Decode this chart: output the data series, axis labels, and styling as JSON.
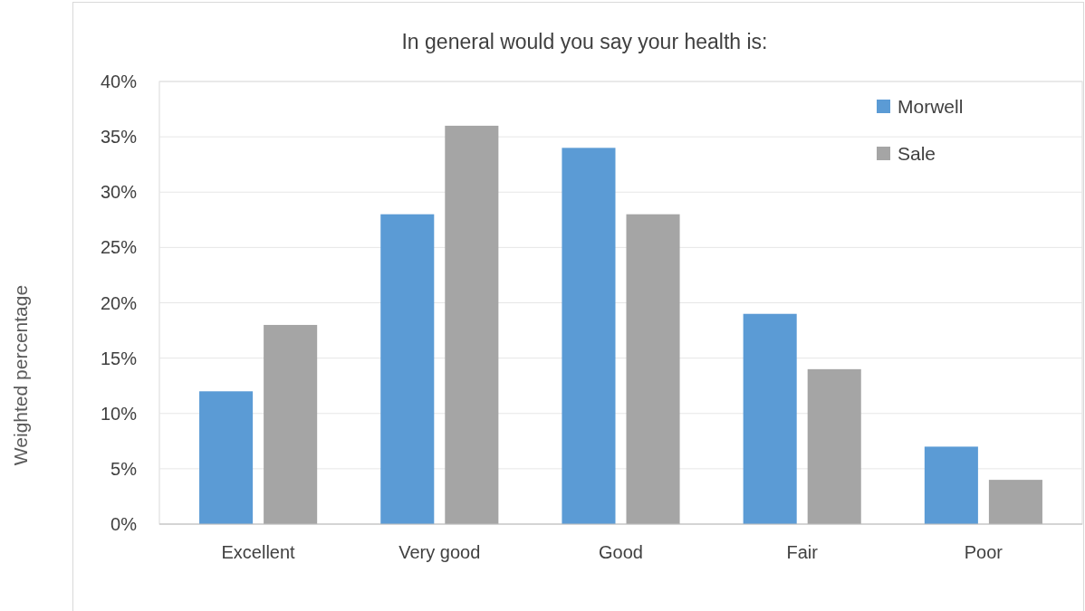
{
  "chart_data": {
    "type": "bar",
    "title": "In general would you say your health is:",
    "ylabel": "Weighted percentage",
    "categories": [
      "Excellent",
      "Very good",
      "Good",
      "Fair",
      "Poor"
    ],
    "series": [
      {
        "name": "Morwell",
        "color": "#5b9bd5",
        "values": [
          12,
          28,
          34,
          19,
          7
        ]
      },
      {
        "name": "Sale",
        "color": "#a5a5a5",
        "values": [
          18,
          36,
          28,
          14,
          4
        ]
      }
    ],
    "ylim": [
      0,
      40
    ],
    "yticks": [
      {
        "value": 0,
        "label": "0%"
      },
      {
        "value": 5,
        "label": "5%"
      },
      {
        "value": 10,
        "label": "10%"
      },
      {
        "value": 15,
        "label": "15%"
      },
      {
        "value": 20,
        "label": "20%"
      },
      {
        "value": 25,
        "label": "25%"
      },
      {
        "value": 30,
        "label": "30%"
      },
      {
        "value": 35,
        "label": "35%"
      },
      {
        "value": 40,
        "label": "40%"
      }
    ],
    "grid": "y",
    "legend": "top right"
  }
}
